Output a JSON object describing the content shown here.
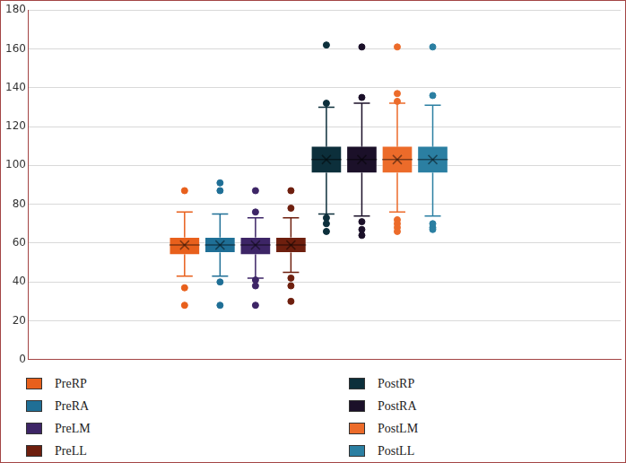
{
  "chart_data": {
    "type": "boxplot",
    "series": [
      {
        "name": "PreRP",
        "color": "#e8601c",
        "min": 43,
        "q1": 54,
        "median": 59,
        "mean": 59,
        "q3": 63,
        "max": 76,
        "outliers": [
          87,
          37,
          28
        ]
      },
      {
        "name": "PreRA",
        "color": "#1f6f96",
        "min": 43,
        "q1": 55,
        "median": 59,
        "mean": 59,
        "q3": 63,
        "max": 75,
        "outliers": [
          91,
          87,
          40,
          28
        ]
      },
      {
        "name": "PreLM",
        "color": "#3d2566",
        "min": 42,
        "q1": 54,
        "median": 59,
        "mean": 59,
        "q3": 63,
        "max": 73,
        "outliers": [
          87,
          76,
          41,
          38,
          28
        ]
      },
      {
        "name": "PreLL",
        "color": "#6e1f0e",
        "min": 45,
        "q1": 55,
        "median": 59,
        "mean": 59,
        "q3": 63,
        "max": 73,
        "outliers": [
          87,
          78,
          42,
          38,
          30
        ]
      },
      {
        "name": "PostRP",
        "color": "#0c2f3b",
        "min": 75,
        "q1": 96,
        "median": 103,
        "mean": 103,
        "q3": 110,
        "max": 130,
        "outliers": [
          162,
          132,
          73,
          70,
          66
        ]
      },
      {
        "name": "PostRA",
        "color": "#1b1029",
        "min": 74,
        "q1": 96,
        "median": 103,
        "mean": 103,
        "q3": 110,
        "max": 132,
        "outliers": [
          161,
          135,
          71,
          67,
          64
        ]
      },
      {
        "name": "PostLM",
        "color": "#ec6b2a",
        "min": 76,
        "q1": 96,
        "median": 103,
        "mean": 103,
        "q3": 110,
        "max": 132,
        "outliers": [
          161,
          137,
          133,
          72,
          70,
          68,
          66
        ]
      },
      {
        "name": "PostLL",
        "color": "#2b7fa2",
        "min": 74,
        "q1": 96,
        "median": 103,
        "mean": 103,
        "q3": 110,
        "max": 131,
        "outliers": [
          161,
          136,
          70,
          68,
          67
        ]
      }
    ],
    "ylim": [
      0,
      180
    ],
    "yticks": [
      0,
      20,
      40,
      60,
      80,
      100,
      120,
      140,
      160,
      180
    ],
    "grid": true,
    "legend": "bottom",
    "tick_labels": "y"
  }
}
